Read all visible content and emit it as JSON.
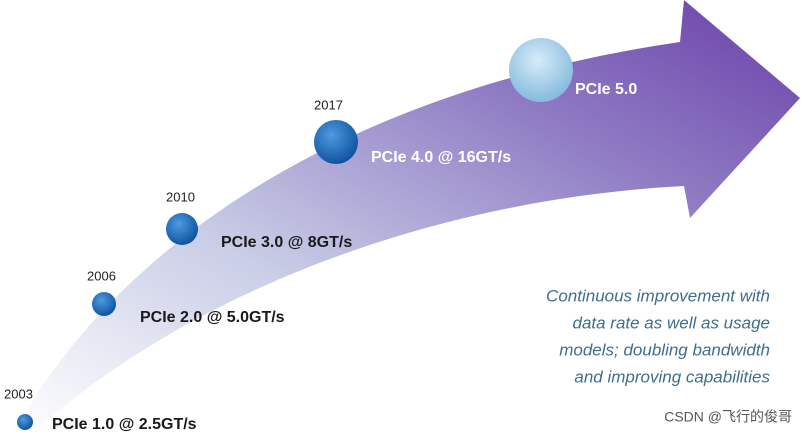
{
  "milestones": [
    {
      "year": "2003",
      "label": "PCIe 1.0 @ 2.5GT/s"
    },
    {
      "year": "2006",
      "label": "PCIe 2.0 @ 5.0GT/s"
    },
    {
      "year": "2010",
      "label": "PCIe 3.0 @ 8GT/s"
    },
    {
      "year": "2017",
      "label": "PCIe 4.0 @ 16GT/s"
    },
    {
      "label": "PCIe 5.0"
    }
  ],
  "caption": [
    "Continuous improvement with",
    "data rate as well as usage",
    "models; doubling bandwidth",
    "and improving capabilities"
  ],
  "watermark": "CSDN @飞行的俊哥"
}
